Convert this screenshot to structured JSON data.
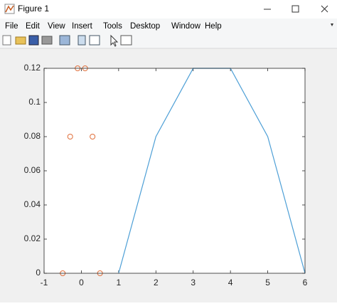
{
  "window": {
    "title": "Figure 1",
    "menu": [
      "File",
      "Edit",
      "View",
      "Insert",
      "Tools",
      "Desktop",
      "Window",
      "Help"
    ]
  },
  "chart_data": {
    "type": "line",
    "series": [
      {
        "type": "line",
        "color": "#4d9fd6",
        "x": [
          1,
          2,
          3,
          4,
          5,
          6
        ],
        "values": [
          0,
          0.08,
          0.12,
          0.12,
          0.08,
          0
        ]
      },
      {
        "type": "scatter",
        "color": "#e0703c",
        "x": [
          -0.5,
          -0.3,
          -0.1,
          0.1,
          0.3,
          0.5
        ],
        "values": [
          0,
          0.08,
          0.12,
          0.12,
          0.08,
          0
        ]
      }
    ],
    "xlim": [
      -1,
      6
    ],
    "xticks": [
      -1,
      0,
      1,
      2,
      3,
      4,
      5,
      6
    ],
    "ylim": [
      0,
      0.12
    ],
    "yticks": [
      0,
      0.02,
      0.04,
      0.06,
      0.08,
      0.1,
      0.12
    ],
    "grid": false
  }
}
